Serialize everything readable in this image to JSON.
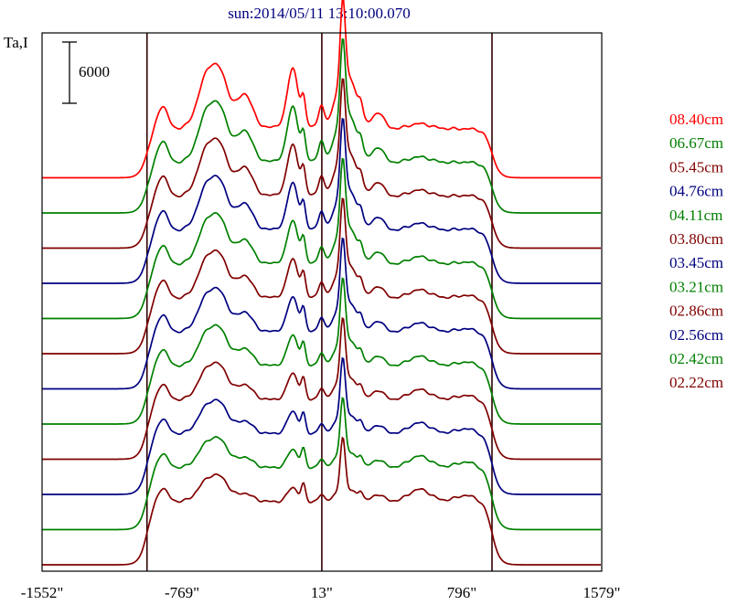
{
  "chart_data": {
    "type": "line",
    "title": "sun:2014/05/11 13:10:00.070",
    "ylabel": "Ta,I",
    "scale_bar_label": "6000",
    "xlim": [
      -1552,
      1579
    ],
    "x_ticks": [
      -1552,
      -769,
      13,
      796,
      1579
    ],
    "x_tick_labels": [
      "-1552\"",
      "-769\"",
      "13\"",
      "796\"",
      "1579\""
    ],
    "disk_edges": [
      -965,
      13,
      965
    ],
    "baseline_step": 6000,
    "colors": {
      "red": "#ff0000",
      "green": "#008000",
      "maroon": "#800000",
      "navy": "#000080",
      "grid": "#300000"
    },
    "series": [
      {
        "name": "08.40cm",
        "color": "#ff0000",
        "offset": 11
      },
      {
        "name": "06.67cm",
        "color": "#008000",
        "offset": 10
      },
      {
        "name": "05.45cm",
        "color": "#800000",
        "offset": 9
      },
      {
        "name": "04.76cm",
        "color": "#000080",
        "offset": 8
      },
      {
        "name": "04.11cm",
        "color": "#008000",
        "offset": 7
      },
      {
        "name": "03.80cm",
        "color": "#800000",
        "offset": 6
      },
      {
        "name": "03.45cm",
        "color": "#000080",
        "offset": 5
      },
      {
        "name": "03.21cm",
        "color": "#008000",
        "offset": 4
      },
      {
        "name": "02.86cm",
        "color": "#800000",
        "offset": 3
      },
      {
        "name": "02.56cm",
        "color": "#000080",
        "offset": 2
      },
      {
        "name": "02.42cm",
        "color": "#008000",
        "offset": 1
      },
      {
        "name": "02.22cm",
        "color": "#800000",
        "offset": 0
      }
    ]
  }
}
